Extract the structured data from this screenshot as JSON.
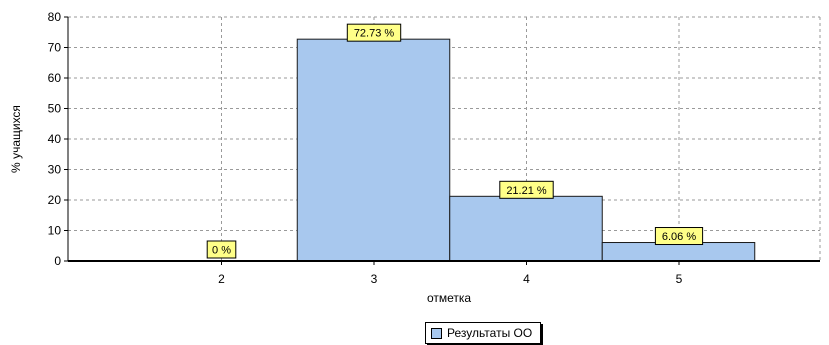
{
  "chart_data": {
    "type": "bar",
    "categories": [
      "2",
      "3",
      "4",
      "5"
    ],
    "series": [
      {
        "name": "Результаты ОО",
        "values": [
          0,
          72.73,
          21.21,
          6.06
        ]
      }
    ],
    "data_labels": [
      "0 %",
      "72.73 %",
      "21.21 %",
      "6.06 %"
    ],
    "xlabel": "отметка",
    "ylabel": "% учащихся",
    "ylim": [
      0,
      80
    ],
    "yticks": [
      "0",
      "10",
      "20",
      "30",
      "40",
      "50",
      "60",
      "70",
      "80"
    ],
    "grid": true,
    "legend_position": "bottom-center",
    "colors": {
      "bar": "#a8c8ee",
      "bar_border": "#1a1a1a",
      "label_bg": "#ffff88",
      "grid": "#9a9a9a"
    }
  }
}
